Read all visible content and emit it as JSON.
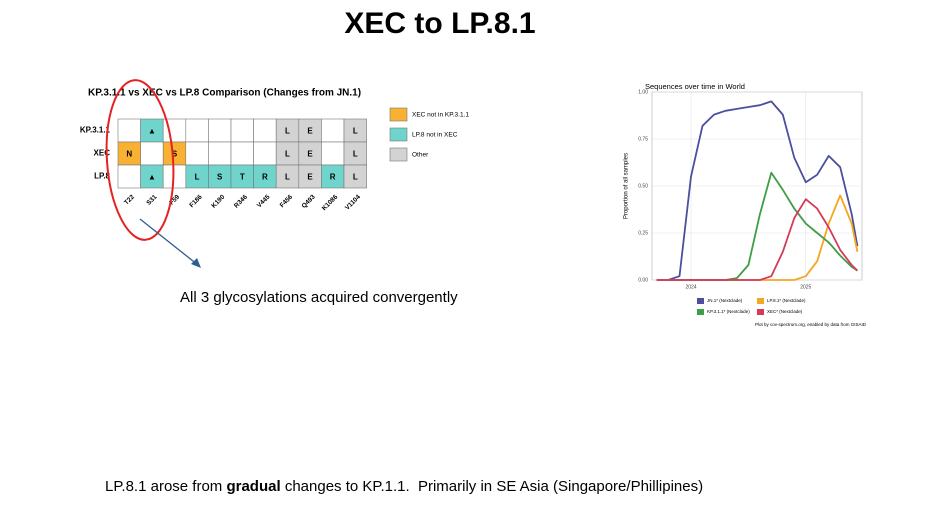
{
  "title": "XEC to LP.8.1",
  "comparison": {
    "title": "KP.3.1.1 vs XEC vs LP.8 Comparison (Changes from JN.1)",
    "columns": [
      "T22",
      "S31",
      "F59",
      "F186",
      "K190",
      "R346",
      "V445",
      "F456",
      "Q493",
      "K1086",
      "V1104"
    ],
    "rows": [
      {
        "label": "KP.3.1.1",
        "cells": [
          null,
          {
            "text": "▲",
            "color": "#6fd4cb"
          },
          null,
          null,
          null,
          null,
          null,
          {
            "text": "L",
            "color": "#d3d3d3"
          },
          {
            "text": "E",
            "color": "#d3d3d3"
          },
          null,
          {
            "text": "L",
            "color": "#d3d3d3"
          }
        ]
      },
      {
        "label": "XEC",
        "cells": [
          {
            "text": "N",
            "color": "#f8b133"
          },
          null,
          {
            "text": "S",
            "color": "#f8b133"
          },
          null,
          null,
          null,
          null,
          {
            "text": "L",
            "color": "#d3d3d3"
          },
          {
            "text": "E",
            "color": "#d3d3d3"
          },
          null,
          {
            "text": "L",
            "color": "#d3d3d3"
          }
        ]
      },
      {
        "label": "LP.8",
        "cells": [
          null,
          {
            "text": "▲",
            "color": "#6fd4cb"
          },
          null,
          {
            "text": "L",
            "color": "#6fd4cb"
          },
          {
            "text": "S",
            "color": "#6fd4cb"
          },
          {
            "text": "T",
            "color": "#6fd4cb"
          },
          {
            "text": "R",
            "color": "#6fd4cb"
          },
          {
            "text": "L",
            "color": "#d3d3d3"
          },
          {
            "text": "E",
            "color": "#d3d3d3"
          },
          {
            "text": "R",
            "color": "#6fd4cb"
          },
          {
            "text": "L",
            "color": "#d3d3d3"
          }
        ]
      }
    ],
    "legend": [
      {
        "label": "XEC not in KP.3.1.1",
        "color": "#f8b133"
      },
      {
        "label": "LP.8 not in XEC",
        "color": "#6fd4cb"
      },
      {
        "label": "Other",
        "color": "#d3d3d3"
      }
    ]
  },
  "note": "All 3 glycosylations acquired convergently",
  "chart_data": {
    "type": "line",
    "title": "Sequences over time in World",
    "y_label": "Proportion of all samples",
    "x": [
      2023.7,
      2023.8,
      2023.9,
      2024.0,
      2024.1,
      2024.2,
      2024.3,
      2024.4,
      2024.5,
      2024.6,
      2024.7,
      2024.8,
      2024.9,
      2025.0,
      2025.1,
      2025.2,
      2025.3,
      2025.4,
      2025.45
    ],
    "xlim": [
      2023.66,
      2025.49
    ],
    "xticks": [
      2024,
      2025
    ],
    "ylim": [
      0,
      1
    ],
    "yticks": [
      {
        "value": 0,
        "label": "0.00"
      },
      {
        "value": 0.25,
        "label": "0.25"
      },
      {
        "value": 0.5,
        "label": "0.50"
      },
      {
        "value": 0.75,
        "label": "0.75"
      },
      {
        "value": 1,
        "label": "1.00"
      }
    ],
    "grid": true,
    "series": [
      {
        "name": "JN.1* (Nextclade)",
        "color": "#4b4f9c",
        "values": [
          0,
          0,
          0.02,
          0.55,
          0.82,
          0.88,
          0.9,
          0.91,
          0.92,
          0.93,
          0.95,
          0.88,
          0.65,
          0.52,
          0.56,
          0.66,
          0.6,
          0.35,
          0.18
        ]
      },
      {
        "name": "LP.8.1* (Nextclade)",
        "color": "#f5a623",
        "values": [
          0,
          0,
          0,
          0,
          0,
          0,
          0,
          0,
          0,
          0,
          0,
          0,
          0,
          0.02,
          0.1,
          0.3,
          0.45,
          0.3,
          0.15
        ]
      },
      {
        "name": "KP.3.1.1* (Nextclade)",
        "color": "#3f9e45",
        "values": [
          0,
          0,
          0,
          0,
          0,
          0,
          0,
          0.01,
          0.08,
          0.35,
          0.57,
          0.48,
          0.38,
          0.3,
          0.25,
          0.2,
          0.13,
          0.07,
          0.05
        ]
      },
      {
        "name": "XEC* (Nextclade)",
        "color": "#d63a5a",
        "values": [
          0,
          0,
          0,
          0,
          0,
          0,
          0,
          0,
          0,
          0,
          0.02,
          0.15,
          0.33,
          0.43,
          0.38,
          0.28,
          0.16,
          0.08,
          0.05
        ]
      }
    ],
    "source": "Plot by cov-spectrum.org, enabled by data from GISAID"
  },
  "footer": {
    "before": "LP.8.1 arose from ",
    "bold": "gradual",
    "after": " changes to KP.1.1.  Primarily in SE Asia (Singapore/Phillipines)"
  }
}
